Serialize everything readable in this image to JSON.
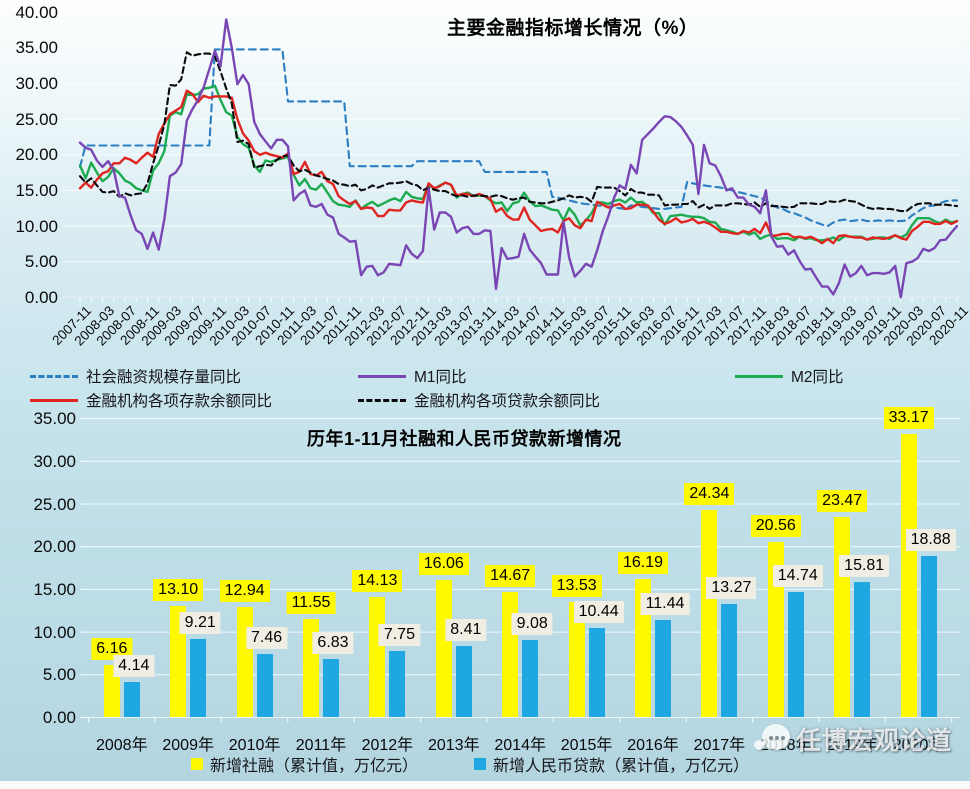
{
  "watermark": {
    "text": "任博宏观论道"
  },
  "chart_data": [
    {
      "type": "line",
      "title": "主要金融指标增长情况（%）",
      "x_frequency": "monthly",
      "x_start": "2007-11",
      "x_end": "2020-11",
      "ylim": [
        0,
        40
      ],
      "grid": true,
      "legend_position": "bottom",
      "y_tick_labels": [
        "0.00",
        "5.00",
        "10.00",
        "15.00",
        "20.00",
        "25.00",
        "30.00",
        "35.00",
        "40.00"
      ],
      "x_tick_labels": [
        "2007-11",
        "2008-03",
        "2008-07",
        "2008-11",
        "2009-03",
        "2009-07",
        "2009-11",
        "2010-03",
        "2010-07",
        "2010-11",
        "2011-03",
        "2011-07",
        "2011-11",
        "2012-03",
        "2012-07",
        "2012-11",
        "2013-03",
        "2013-07",
        "2013-11",
        "2014-03",
        "2014-07",
        "2014-11",
        "2015-03",
        "2015-07",
        "2015-11",
        "2016-03",
        "2016-07",
        "2016-11",
        "2017-03",
        "2017-07",
        "2017-11",
        "2018-03",
        "2018-07",
        "2018-11",
        "2019-03",
        "2019-07",
        "2019-11",
        "2020-03",
        "2020-07",
        "2020-11"
      ],
      "x_tick_step_months": 4,
      "series": [
        {
          "key": "shr",
          "name": "社会融资规模存量同比",
          "color": "#2b7ec1",
          "style": "dashed",
          "values": [
            18.3,
            21.3,
            21.3,
            21.3,
            21.3,
            21.3,
            21.3,
            21.3,
            21.3,
            21.3,
            21.3,
            21.3,
            21.3,
            21.3,
            21.3,
            21.3,
            21.3,
            21.3,
            21.3,
            21.3,
            21.3,
            21.3,
            21.3,
            21.3,
            34.8,
            34.8,
            34.8,
            34.8,
            34.8,
            34.8,
            34.8,
            34.8,
            34.8,
            34.8,
            34.8,
            34.8,
            34.8,
            27.5,
            27.5,
            27.5,
            27.5,
            27.5,
            27.5,
            27.5,
            27.5,
            27.5,
            27.5,
            27.5,
            18.4,
            18.4,
            18.4,
            18.4,
            18.4,
            18.4,
            18.4,
            18.4,
            18.4,
            18.4,
            18.4,
            18.4,
            19.1,
            19.1,
            19.1,
            19.1,
            19.1,
            19.1,
            19.1,
            19.1,
            19.1,
            19.1,
            19.1,
            19.1,
            17.6,
            17.6,
            17.6,
            17.6,
            17.6,
            17.6,
            17.6,
            17.6,
            17.6,
            17.6,
            17.6,
            17.6,
            14.1,
            14.0,
            13.8,
            13.6,
            13.4,
            13.2,
            13.1,
            13.0,
            12.9,
            12.8,
            12.7,
            12.6,
            12.5,
            12.4,
            12.9,
            12.8,
            12.7,
            12.6,
            12.5,
            12.4,
            12.4,
            12.5,
            12.6,
            12.7,
            16.2,
            16.0,
            15.8,
            15.7,
            15.6,
            15.5,
            15.4,
            15.2,
            15.0,
            14.8,
            14.6,
            14.4,
            14.2,
            14.0,
            13.6,
            13.0,
            12.6,
            12.4,
            12.0,
            11.8,
            11.5,
            11.2,
            10.8,
            10.5,
            10.2,
            10.0,
            10.5,
            10.8,
            10.9,
            10.7,
            10.8,
            10.9,
            10.7,
            10.7,
            10.8,
            10.7,
            10.8,
            10.7,
            10.7,
            10.8,
            11.5,
            12.0,
            12.5,
            12.8,
            12.9,
            13.2,
            13.5,
            13.6,
            13.6
          ]
        },
        {
          "key": "m1",
          "name": "M1同比",
          "color": "#7a46b4",
          "style": "solid",
          "values": [
            21.7,
            21.0,
            20.7,
            19.2,
            18.3,
            19.1,
            17.9,
            14.2,
            14.0,
            11.5,
            9.4,
            8.9,
            6.8,
            9.1,
            6.7,
            10.9,
            17.0,
            17.5,
            18.7,
            24.8,
            26.4,
            27.7,
            29.5,
            32.0,
            34.6,
            32.4,
            39.0,
            35.0,
            29.9,
            31.2,
            29.9,
            24.6,
            22.9,
            21.9,
            20.9,
            22.1,
            22.1,
            21.2,
            13.6,
            14.5,
            15.0,
            12.9,
            12.7,
            13.1,
            11.6,
            11.2,
            8.9,
            8.4,
            7.8,
            7.9,
            3.1,
            4.3,
            4.4,
            3.1,
            3.5,
            4.7,
            4.6,
            4.5,
            7.3,
            6.1,
            5.5,
            6.5,
            15.3,
            9.5,
            11.9,
            11.9,
            11.3,
            9.1,
            9.7,
            9.9,
            8.9,
            8.9,
            9.4,
            9.3,
            1.2,
            6.9,
            5.4,
            5.5,
            5.7,
            8.9,
            6.7,
            5.7,
            4.8,
            3.2,
            3.2,
            3.2,
            10.6,
            5.6,
            2.9,
            3.7,
            4.7,
            4.3,
            6.6,
            9.3,
            11.4,
            14.0,
            15.7,
            15.2,
            18.6,
            17.4,
            22.1,
            22.9,
            23.7,
            24.6,
            25.4,
            25.3,
            24.7,
            23.9,
            22.7,
            21.4,
            14.5,
            21.4,
            18.8,
            18.5,
            17.0,
            15.0,
            15.3,
            14.0,
            14.0,
            13.0,
            12.7,
            11.8,
            15.0,
            8.5,
            7.1,
            7.2,
            6.0,
            6.6,
            5.1,
            3.9,
            4.0,
            2.7,
            1.5,
            1.5,
            0.4,
            2.0,
            4.6,
            2.9,
            3.4,
            4.4,
            3.1,
            3.4,
            3.4,
            3.3,
            3.5,
            4.4,
            0.0,
            4.8,
            5.0,
            5.5,
            6.8,
            6.5,
            6.9,
            8.0,
            8.1,
            9.1,
            10.0
          ]
        },
        {
          "key": "m2",
          "name": "M2同比",
          "color": "#1cab50",
          "style": "solid",
          "values": [
            18.5,
            16.7,
            18.9,
            17.5,
            16.3,
            16.9,
            18.1,
            17.4,
            16.4,
            16.0,
            15.3,
            15.0,
            14.8,
            17.8,
            18.8,
            20.5,
            25.5,
            26.0,
            25.7,
            28.5,
            28.4,
            28.5,
            29.3,
            29.4,
            29.7,
            27.7,
            26.0,
            25.5,
            22.5,
            21.5,
            21.0,
            18.5,
            17.6,
            19.2,
            19.0,
            19.3,
            19.5,
            19.7,
            17.2,
            15.7,
            16.6,
            15.3,
            15.1,
            15.9,
            14.7,
            13.5,
            13.0,
            12.9,
            12.7,
            13.6,
            12.4,
            13.0,
            13.4,
            12.8,
            13.2,
            13.6,
            13.9,
            13.5,
            14.8,
            14.1,
            13.9,
            13.8,
            15.9,
            15.2,
            15.7,
            16.1,
            15.8,
            14.0,
            14.5,
            14.7,
            14.2,
            14.3,
            14.2,
            13.6,
            13.2,
            13.3,
            12.1,
            13.2,
            13.4,
            14.7,
            13.5,
            12.8,
            12.9,
            12.6,
            12.3,
            12.2,
            10.8,
            12.5,
            11.6,
            10.1,
            10.8,
            11.8,
            13.3,
            13.3,
            13.1,
            13.5,
            13.7,
            13.3,
            14.0,
            13.3,
            13.4,
            12.8,
            11.8,
            11.8,
            10.2,
            11.4,
            11.5,
            11.6,
            11.4,
            11.3,
            11.3,
            11.1,
            10.6,
            10.5,
            9.6,
            9.4,
            9.2,
            8.9,
            9.2,
            8.8,
            9.1,
            8.2,
            8.6,
            8.8,
            8.2,
            8.3,
            8.3,
            8.0,
            8.5,
            8.2,
            8.3,
            8.0,
            8.0,
            8.1,
            8.4,
            8.0,
            8.6,
            8.5,
            8.5,
            8.5,
            8.1,
            8.2,
            8.4,
            8.4,
            8.2,
            8.7,
            8.4,
            8.8,
            10.1,
            11.1,
            11.1,
            11.1,
            10.7,
            10.4,
            10.9,
            10.5,
            10.7
          ]
        },
        {
          "key": "deposit",
          "name": "金融机构各项存款余额同比",
          "color": "#e02420",
          "style": "solid",
          "values": [
            15.3,
            16.1,
            15.4,
            16.5,
            17.4,
            17.7,
            18.8,
            18.8,
            19.6,
            19.3,
            18.8,
            19.6,
            20.3,
            19.7,
            22.9,
            24.4,
            25.7,
            26.2,
            26.7,
            29.0,
            28.5,
            27.4,
            28.3,
            28.0,
            28.2,
            28.2,
            28.2,
            28.0,
            25.0,
            23.0,
            22.0,
            20.5,
            20.0,
            20.3,
            20.0,
            19.8,
            19.6,
            20.2,
            17.3,
            17.6,
            19.0,
            17.3,
            17.1,
            17.6,
            16.3,
            15.9,
            14.2,
            13.6,
            13.1,
            13.5,
            12.4,
            12.6,
            12.5,
            11.4,
            11.4,
            12.3,
            12.2,
            12.2,
            13.3,
            13.6,
            13.4,
            13.3,
            16.0,
            15.3,
            15.6,
            16.1,
            15.8,
            14.3,
            14.5,
            14.5,
            14.2,
            14.5,
            14.2,
            13.8,
            12.0,
            12.5,
            11.4,
            10.9,
            10.9,
            12.6,
            10.9,
            10.1,
            9.3,
            9.5,
            9.6,
            9.1,
            10.7,
            11.1,
            10.1,
            9.7,
            10.9,
            10.7,
            13.4,
            13.0,
            12.6,
            12.9,
            13.1,
            12.4,
            12.5,
            13.0,
            13.0,
            12.9,
            12.0,
            10.9,
            10.3,
            10.6,
            11.1,
            10.5,
            10.7,
            11.0,
            10.4,
            10.6,
            10.3,
            9.8,
            9.2,
            9.2,
            9.0,
            8.9,
            9.3,
            9.1,
            9.6,
            9.0,
            10.5,
            8.6,
            8.7,
            8.9,
            8.9,
            8.4,
            8.5,
            8.3,
            8.5,
            8.1,
            7.6,
            8.2,
            7.6,
            8.6,
            8.7,
            8.5,
            8.4,
            8.4,
            8.1,
            8.4,
            8.3,
            8.2,
            8.4,
            8.7,
            8.3,
            8.1,
            9.3,
            9.9,
            10.6,
            10.6,
            10.3,
            10.3,
            10.7,
            10.3,
            10.7
          ]
        },
        {
          "key": "loan",
          "name": "金融机构各项贷款余额同比",
          "color": "#0a0a0a",
          "style": "dashed",
          "values": [
            17.0,
            16.1,
            16.7,
            15.7,
            14.8,
            14.7,
            14.9,
            14.1,
            14.6,
            14.3,
            14.5,
            14.6,
            16.0,
            18.8,
            21.3,
            24.2,
            29.8,
            29.7,
            30.6,
            34.4,
            33.9,
            34.1,
            34.2,
            34.2,
            33.8,
            31.7,
            29.3,
            27.2,
            21.8,
            22.0,
            21.5,
            18.2,
            18.4,
            18.6,
            18.5,
            19.3,
            19.8,
            19.9,
            18.5,
            17.7,
            17.9,
            17.5,
            17.1,
            16.9,
            16.6,
            16.4,
            15.9,
            15.8,
            15.6,
            15.8,
            15.0,
            15.2,
            15.7,
            15.4,
            15.7,
            16.0,
            16.0,
            16.1,
            16.3,
            15.9,
            15.7,
            15.0,
            15.4,
            15.1,
            14.9,
            14.9,
            14.5,
            14.2,
            14.3,
            14.1,
            14.3,
            14.3,
            14.2,
            14.1,
            14.3,
            14.2,
            13.9,
            13.7,
            13.9,
            14.0,
            13.4,
            13.3,
            13.2,
            13.2,
            13.4,
            13.6,
            13.9,
            14.3,
            14.0,
            14.1,
            14.0,
            13.4,
            15.5,
            15.4,
            15.4,
            15.4,
            14.9,
            14.3,
            15.2,
            14.7,
            14.7,
            14.4,
            14.4,
            14.3,
            12.9,
            13.0,
            13.0,
            13.1,
            13.1,
            13.5,
            12.6,
            13.0,
            12.4,
            12.9,
            12.9,
            12.9,
            13.2,
            13.2,
            13.1,
            13.0,
            13.3,
            12.7,
            13.2,
            12.8,
            12.8,
            12.7,
            12.6,
            12.7,
            13.2,
            13.2,
            13.2,
            13.1,
            13.1,
            13.5,
            13.4,
            13.4,
            13.7,
            13.5,
            13.4,
            13.0,
            12.6,
            12.4,
            12.5,
            12.4,
            12.4,
            12.3,
            12.1,
            12.1,
            12.7,
            13.1,
            13.2,
            13.2,
            13.0,
            13.0,
            13.0,
            12.9,
            12.8
          ]
        }
      ]
    },
    {
      "type": "bar",
      "title": "历年1-11月社融和人民币贷款新增情况",
      "categories": [
        "2008年",
        "2009年",
        "2010年",
        "2011年",
        "2012年",
        "2013年",
        "2014年",
        "2015年",
        "2016年",
        "2017年",
        "2018年",
        "2019年",
        "2020年"
      ],
      "ylim": [
        0,
        35
      ],
      "grid": true,
      "legend_position": "bottom",
      "y_tick_labels": [
        "0.00",
        "5.00",
        "10.00",
        "15.00",
        "20.00",
        "25.00",
        "30.00",
        "35.00"
      ],
      "series": [
        {
          "key": "sofi",
          "name": "新增社融（累计值，万亿元）",
          "color": "#fef900",
          "label_bg": "#fef900",
          "values": [
            6.16,
            13.1,
            12.94,
            11.55,
            14.13,
            16.06,
            14.67,
            13.53,
            16.19,
            24.34,
            20.56,
            23.47,
            33.17
          ],
          "labels": [
            "6.16",
            "13.10",
            "12.94",
            "11.55",
            "14.13",
            "16.06",
            "14.67",
            "13.53",
            "16.19",
            "24.34",
            "20.56",
            "23.47",
            "33.17"
          ]
        },
        {
          "key": "rmbloan",
          "name": "新增人民币贷款（累计值，万亿元）",
          "color": "#1ea7e0",
          "label_bg": "#f0eee2",
          "values": [
            4.14,
            9.21,
            7.46,
            6.83,
            7.75,
            8.41,
            9.08,
            10.44,
            11.44,
            13.27,
            14.74,
            15.81,
            18.88
          ],
          "labels": [
            "4.14",
            "9.21",
            "7.46",
            "6.83",
            "7.75",
            "8.41",
            "9.08",
            "10.44",
            "11.44",
            "13.27",
            "14.74",
            "15.81",
            "18.88"
          ]
        }
      ]
    }
  ]
}
